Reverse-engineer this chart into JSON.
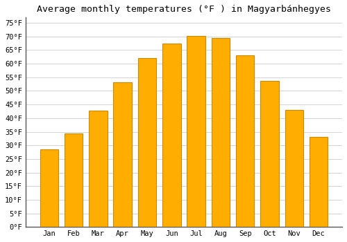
{
  "title": "Average monthly temperatures (°F ) in Magyarbánhegyes",
  "months": [
    "Jan",
    "Feb",
    "Mar",
    "Apr",
    "May",
    "Jun",
    "Jul",
    "Aug",
    "Sep",
    "Oct",
    "Nov",
    "Dec"
  ],
  "values": [
    28.4,
    34.3,
    42.8,
    53.1,
    62.1,
    67.3,
    70.2,
    69.4,
    63.1,
    53.6,
    43.0,
    33.1
  ],
  "bar_color": "#FFAE00",
  "bar_edge_color": "#CC8800",
  "background_color": "#FFFFFF",
  "grid_color": "#CCCCCC",
  "title_fontsize": 9.5,
  "tick_fontsize": 7.5,
  "ylim": [
    0,
    77
  ],
  "yticks": [
    0,
    5,
    10,
    15,
    20,
    25,
    30,
    35,
    40,
    45,
    50,
    55,
    60,
    65,
    70,
    75
  ]
}
